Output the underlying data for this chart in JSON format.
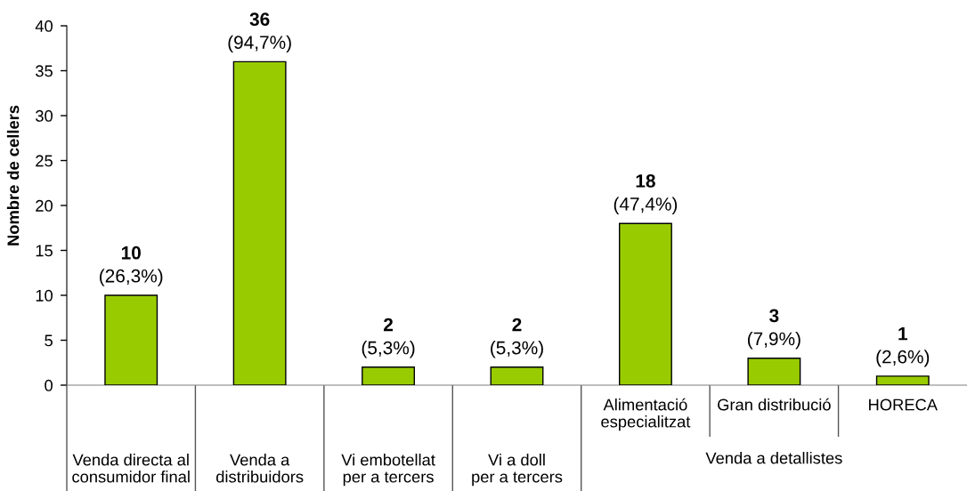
{
  "chart_data": {
    "type": "bar",
    "ylabel": "Nombre de cellers",
    "categories": [
      "Venda directa al\nconsumidor final",
      "Venda a\ndistribuidors",
      "Vi embotellat\nper a tercers",
      "Vi a doll\nper a tercers",
      "Alimentació\nespecialitzat",
      "Gran distribució",
      "HORECA"
    ],
    "values": [
      10,
      36,
      2,
      2,
      18,
      3,
      1
    ],
    "value_labels": [
      "10\n(26,3%)",
      "36\n(94,7%)",
      "2\n(5,3%)",
      "2\n(5,3%)",
      "18\n(47,4%)",
      "3\n(7,9%)",
      "1\n(2,6%)"
    ],
    "color": "#99cc00",
    "ylim": [
      0,
      40
    ],
    "yticks": [
      0,
      5,
      10,
      15,
      20,
      25,
      30,
      35,
      40
    ],
    "annotations": [
      "Venda a detallistes"
    ]
  }
}
